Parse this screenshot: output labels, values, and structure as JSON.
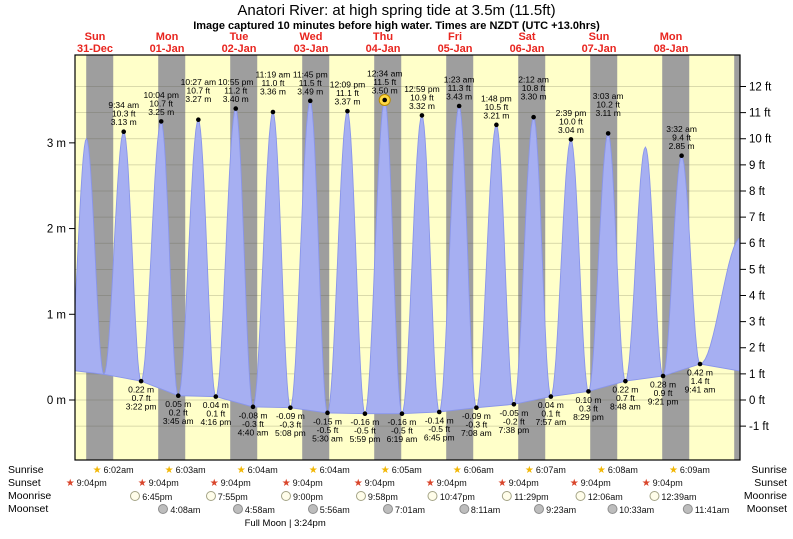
{
  "title": "Anatori River: at high  spring tide at 3.5m (11.5ft)",
  "subtitle": "Image captured 10 minutes before high water. Times are NZDT (UTC +13.0hrs)",
  "colors": {
    "day_band": "#ffffc9",
    "night_band": "#9e9e9e",
    "tide_fill": "#a6aff2",
    "tide_stroke": "#8995ea",
    "day_label": "#e8251f",
    "highlight": "#ffd944",
    "highlight_ring": "#b98b00",
    "grid": "rgba(80,80,55,0.28)"
  },
  "days": [
    {
      "name": "Sun",
      "date": "31-Dec"
    },
    {
      "name": "Mon",
      "date": "01-Jan"
    },
    {
      "name": "Tue",
      "date": "02-Jan"
    },
    {
      "name": "Wed",
      "date": "03-Jan"
    },
    {
      "name": "Thu",
      "date": "04-Jan"
    },
    {
      "name": "Fri",
      "date": "05-Jan"
    },
    {
      "name": "Sat",
      "date": "06-Jan"
    },
    {
      "name": "Sun",
      "date": "07-Jan"
    },
    {
      "name": "Mon",
      "date": "08-Jan"
    }
  ],
  "y_axis": {
    "left_labels": [
      "0 m",
      "1 m",
      "2 m",
      "3 m"
    ],
    "right_labels": [
      "-1 ft",
      "0 ft",
      "1 ft",
      "2 ft",
      "3 ft",
      "4 ft",
      "5 ft",
      "6 ft",
      "7 ft",
      "8 ft",
      "9 ft",
      "10 ft",
      "11 ft",
      "12 ft"
    ]
  },
  "chart_data": {
    "type": "area",
    "title": "Anatori River tide heights",
    "x_unit": "hours since Sun 31-Dec 00:00 NZDT",
    "y_unit": "m",
    "ylim_m": [
      -0.72,
      4.03
    ],
    "night_shading": {
      "sunset_h": 21.07,
      "sunrise_h": 6.08
    },
    "tide_events": [
      {
        "t": -8.7,
        "height_m": 0.35,
        "type": "low",
        "estimated": true
      },
      {
        "t": -2.85,
        "height_m": 3.05,
        "type": "high",
        "estimated": true
      },
      {
        "t": 2.97,
        "height_m": 0.3,
        "type": "low",
        "estimated": true
      },
      {
        "t": 9.57,
        "height_m": 3.13,
        "type": "high",
        "labels": [
          "9:34 am",
          "10.3 ft",
          "3.13 m"
        ]
      },
      {
        "t": 15.37,
        "height_m": 0.22,
        "type": "low",
        "labels": [
          "0.22 m",
          "0.7 ft",
          "3:22 pm"
        ]
      },
      {
        "t": 22.07,
        "height_m": 3.25,
        "type": "high",
        "labels": [
          "10:04 pm",
          "10.7 ft",
          "3.25 m"
        ]
      },
      {
        "t": 27.75,
        "height_m": 0.05,
        "type": "low",
        "labels": [
          "0.05 m",
          "0.2 ft",
          "3:45 am"
        ]
      },
      {
        "t": 34.45,
        "height_m": 3.27,
        "type": "high",
        "labels": [
          "10:27 am",
          "10.7 ft",
          "3.27 m"
        ]
      },
      {
        "t": 40.27,
        "height_m": 0.04,
        "type": "low",
        "labels": [
          "0.04 m",
          "0.1 ft",
          "4:16 pm"
        ]
      },
      {
        "t": 46.92,
        "height_m": 3.4,
        "type": "high",
        "labels": [
          "10:55 pm",
          "11.2 ft",
          "3.40 m"
        ]
      },
      {
        "t": 52.67,
        "height_m": -0.08,
        "type": "low",
        "labels": [
          "-0.08 m",
          "-0.3 ft",
          "4:40 am"
        ]
      },
      {
        "t": 59.32,
        "height_m": 3.36,
        "type": "high",
        "labels": [
          "11:19 am",
          "11.0 ft",
          "3.36 m"
        ]
      },
      {
        "t": 65.13,
        "height_m": -0.09,
        "type": "low",
        "labels": [
          "-0.09 m",
          "-0.3 ft",
          "5:08 pm"
        ]
      },
      {
        "t": 71.75,
        "height_m": 3.49,
        "type": "high",
        "labels": [
          "11:45 pm",
          "11.5 ft",
          "3.49 m"
        ]
      },
      {
        "t": 77.5,
        "height_m": -0.15,
        "type": "low",
        "labels": [
          "-0.15 m",
          "-0.5 ft",
          "5:30 am"
        ]
      },
      {
        "t": 84.15,
        "height_m": 3.37,
        "type": "high",
        "labels": [
          "12:09 pm",
          "11.1 ft",
          "3.37 m"
        ]
      },
      {
        "t": 89.98,
        "height_m": -0.16,
        "type": "low",
        "labels": [
          "-0.16 m",
          "-0.5 ft",
          "5:59 pm"
        ]
      },
      {
        "t": 96.57,
        "height_m": 3.5,
        "type": "high",
        "highlight": true,
        "labels": [
          "12:34 am",
          "11.5 ft",
          "3.50 m"
        ]
      },
      {
        "t": 102.32,
        "height_m": -0.16,
        "type": "low",
        "labels": [
          "-0.16 m",
          "-0.5 ft",
          "6:19 am"
        ]
      },
      {
        "t": 108.98,
        "height_m": 3.32,
        "type": "high",
        "labels": [
          "12:59 pm",
          "10.9 ft",
          "3.32 m"
        ]
      },
      {
        "t": 114.75,
        "height_m": -0.14,
        "type": "low",
        "labels": [
          "-0.14 m",
          "-0.5 ft",
          "6:45 pm"
        ]
      },
      {
        "t": 121.38,
        "height_m": 3.43,
        "type": "high",
        "labels": [
          "1:23 am",
          "11.3 ft",
          "3.43 m"
        ]
      },
      {
        "t": 127.13,
        "height_m": -0.09,
        "type": "low",
        "labels": [
          "-0.09 m",
          "-0.3 ft",
          "7:08 am"
        ]
      },
      {
        "t": 133.8,
        "height_m": 3.21,
        "type": "high",
        "labels": [
          "1:48 pm",
          "10.5 ft",
          "3.21 m"
        ]
      },
      {
        "t": 139.63,
        "height_m": -0.05,
        "type": "low",
        "labels": [
          "-0.05 m",
          "-0.2 ft",
          "7:38 pm"
        ]
      },
      {
        "t": 146.2,
        "height_m": 3.3,
        "type": "high",
        "labels": [
          "2:12 am",
          "10.8 ft",
          "3.30 m"
        ]
      },
      {
        "t": 151.95,
        "height_m": 0.04,
        "type": "low",
        "labels": [
          "0.04 m",
          "0.1 ft",
          "7:57 am"
        ]
      },
      {
        "t": 158.65,
        "height_m": 3.04,
        "type": "high",
        "labels": [
          "2:39 pm",
          "10.0 ft",
          "3.04 m"
        ]
      },
      {
        "t": 164.48,
        "height_m": 0.1,
        "type": "low",
        "labels": [
          "0.10 m",
          "0.3 ft",
          "8:29 pm"
        ]
      },
      {
        "t": 171.05,
        "height_m": 3.11,
        "type": "high",
        "labels": [
          "3:03 am",
          "10.2 ft",
          "3.11 m"
        ]
      },
      {
        "t": 176.8,
        "height_m": 0.22,
        "type": "low",
        "labels": [
          "0.22 m",
          "0.7 ft",
          "8:48 am"
        ]
      },
      {
        "t": 183.47,
        "height_m": 2.95,
        "type": "high",
        "estimated": true
      },
      {
        "t": 189.35,
        "height_m": 0.28,
        "type": "low",
        "labels": [
          "0.28 m",
          "0.9 ft",
          "9:21 pm"
        ]
      },
      {
        "t": 195.53,
        "height_m": 2.85,
        "type": "high",
        "labels": [
          "3:32 am",
          "9.4 ft",
          "2.85 m"
        ]
      },
      {
        "t": 201.68,
        "height_m": 0.42,
        "type": "low",
        "labels": [
          "0.42 m",
          "1.4 ft",
          "9:41 am"
        ]
      },
      {
        "t": 215.5,
        "height_m": 1.9,
        "type": "high",
        "estimated": true
      },
      {
        "t": 221.0,
        "height_m": 0.3,
        "type": "low",
        "estimated": true
      }
    ]
  },
  "almanac": {
    "rows": [
      {
        "label": "Sunrise",
        "icon": "sunrise",
        "entries": [
          {
            "t": 6.03,
            "time": "6:02am"
          },
          {
            "t": 30.05,
            "time": "6:03am"
          },
          {
            "t": 54.07,
            "time": "6:04am"
          },
          {
            "t": 78.07,
            "time": "6:04am"
          },
          {
            "t": 102.08,
            "time": "6:05am"
          },
          {
            "t": 126.1,
            "time": "6:06am"
          },
          {
            "t": 150.12,
            "time": "6:07am"
          },
          {
            "t": 174.13,
            "time": "6:08am"
          },
          {
            "t": 198.15,
            "time": "6:09am"
          }
        ]
      },
      {
        "label": "Sunset",
        "icon": "sunset",
        "entries": [
          {
            "t": -2.93,
            "time": "9:04pm"
          },
          {
            "t": 21.07,
            "time": "9:04pm"
          },
          {
            "t": 45.07,
            "time": "9:04pm"
          },
          {
            "t": 69.07,
            "time": "9:04pm"
          },
          {
            "t": 93.07,
            "time": "9:04pm"
          },
          {
            "t": 117.07,
            "time": "9:04pm"
          },
          {
            "t": 141.07,
            "time": "9:04pm"
          },
          {
            "t": 165.07,
            "time": "9:04pm"
          },
          {
            "t": 189.07,
            "time": "9:04pm"
          }
        ]
      },
      {
        "label": "Moonrise",
        "icon": "moonrise",
        "entries": [
          {
            "t": 18.75,
            "time": "6:45pm"
          },
          {
            "t": 43.92,
            "time": "7:55pm"
          },
          {
            "t": 69.0,
            "time": "9:00pm"
          },
          {
            "t": 93.97,
            "time": "9:58pm"
          },
          {
            "t": 118.78,
            "time": "10:47pm"
          },
          {
            "t": 143.48,
            "time": "11:29pm"
          },
          {
            "t": 168.1,
            "time": "12:06am"
          },
          {
            "t": 192.65,
            "time": "12:39am"
          }
        ]
      },
      {
        "label": "Moonset",
        "icon": "moonset",
        "entries": [
          {
            "t": 28.13,
            "time": "4:08am"
          },
          {
            "t": 52.97,
            "time": "4:58am"
          },
          {
            "t": 77.93,
            "time": "5:56am"
          },
          {
            "t": 103.02,
            "time": "7:01am"
          },
          {
            "t": 128.18,
            "time": "8:11am"
          },
          {
            "t": 153.38,
            "time": "9:23am"
          },
          {
            "t": 178.55,
            "time": "10:33am"
          },
          {
            "t": 203.68,
            "time": "11:41am"
          }
        ]
      }
    ],
    "footer": {
      "text": "Full Moon | 3:24pm",
      "t": 63.4
    }
  }
}
